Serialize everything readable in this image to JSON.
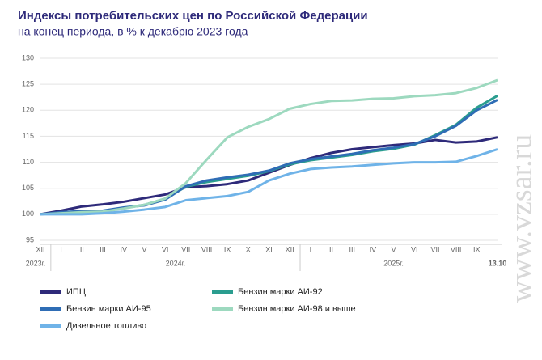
{
  "chart_data": {
    "type": "line",
    "title": "Индексы потребительских цен по Российской Федерации",
    "subtitle": "на конец периода, в % к декабрю 2023 года",
    "categories": [
      "XII",
      "I",
      "II",
      "III",
      "IV",
      "V",
      "VI",
      "VII",
      "VIII",
      "IX",
      "X",
      "XI",
      "XII",
      "I",
      "II",
      "III",
      "IV",
      "V",
      "VI",
      "VII",
      "VIII",
      "IX",
      "13.10"
    ],
    "year_labels": [
      "2023г.",
      "2024г.",
      "2025г."
    ],
    "ylim": [
      95,
      130
    ],
    "yticks": [
      95,
      100,
      105,
      110,
      115,
      120,
      125,
      130
    ],
    "grid": true,
    "watermark": "www.vzsar.ru",
    "series": [
      {
        "name": "ИПЦ",
        "color": "#2e2a7a",
        "values": [
          100,
          100.7,
          101.5,
          101.9,
          102.4,
          103.1,
          103.8,
          105.2,
          105.4,
          105.8,
          106.5,
          108.0,
          109.5,
          110.8,
          111.8,
          112.5,
          112.9,
          113.3,
          113.6,
          114.3,
          113.8,
          114.0,
          114.8
        ]
      },
      {
        "name": "Бензин марки АИ-92",
        "color": "#2a9d8f",
        "values": [
          100,
          100.3,
          100.5,
          100.6,
          101.2,
          101.8,
          103.0,
          105.3,
          106.2,
          106.8,
          107.4,
          108.3,
          109.6,
          110.4,
          110.9,
          111.4,
          112.1,
          112.6,
          113.4,
          115.2,
          117.2,
          120.5,
          122.8
        ]
      },
      {
        "name": "Бензин марки АИ-95",
        "color": "#2f6db5",
        "values": [
          100,
          100.4,
          100.6,
          100.7,
          101.3,
          101.7,
          102.8,
          105.4,
          106.5,
          107.1,
          107.6,
          108.4,
          109.8,
          110.6,
          111.1,
          111.6,
          112.3,
          112.8,
          113.5,
          115.0,
          117.0,
          120.0,
          122.0
        ]
      },
      {
        "name": "Бензин марки АИ-98 и выше",
        "color": "#9dd9bf",
        "values": [
          100,
          100.2,
          100.4,
          100.5,
          101.1,
          101.8,
          103.0,
          106.0,
          110.5,
          114.8,
          116.8,
          118.3,
          120.3,
          121.2,
          121.8,
          121.9,
          122.2,
          122.3,
          122.7,
          122.9,
          123.3,
          124.3,
          125.8
        ]
      },
      {
        "name": "Дизельное топливо",
        "color": "#6fb3e8",
        "values": [
          100,
          100.0,
          100.0,
          100.2,
          100.5,
          100.9,
          101.4,
          102.7,
          103.1,
          103.5,
          104.3,
          106.5,
          107.8,
          108.7,
          109.0,
          109.2,
          109.5,
          109.8,
          110.0,
          110.0,
          110.1,
          111.2,
          112.5
        ]
      }
    ]
  }
}
